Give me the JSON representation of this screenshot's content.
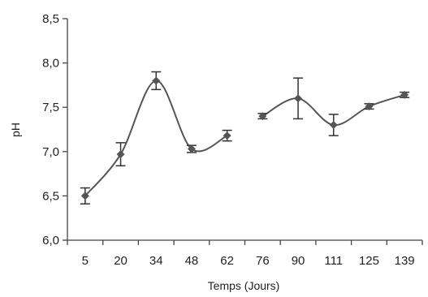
{
  "chart_data": {
    "type": "line",
    "xlabel": "Temps (Jours)",
    "ylabel": "pH",
    "ylim": [
      6.0,
      8.5
    ],
    "yticks": [
      "6,0",
      "6,5",
      "7,0",
      "7,5",
      "8,0",
      "8,5"
    ],
    "ytick_values": [
      6.0,
      6.5,
      7.0,
      7.5,
      8.0,
      8.5
    ],
    "categories": [
      "5",
      "20",
      "34",
      "48",
      "62",
      "76",
      "90",
      "111",
      "125",
      "139"
    ],
    "grid": false,
    "legend": "none",
    "line_color": "#555555",
    "marker_color": "#555555",
    "series": [
      {
        "segments": [
          {
            "points": [
              {
                "x": "5",
                "y": 6.5,
                "err": 0.09
              },
              {
                "x": "20",
                "y": 6.97,
                "err": 0.13
              },
              {
                "x": "34",
                "y": 7.8,
                "err": 0.1
              },
              {
                "x": "48",
                "y": 7.03,
                "err": 0.04
              },
              {
                "x": "62",
                "y": 7.18,
                "err": 0.06
              }
            ]
          },
          {
            "points": [
              {
                "x": "76",
                "y": 7.4,
                "err": 0.03
              },
              {
                "x": "90",
                "y": 7.6,
                "err": 0.23
              },
              {
                "x": "111",
                "y": 7.3,
                "err": 0.12
              },
              {
                "x": "125",
                "y": 7.51,
                "err": 0.03
              },
              {
                "x": "139",
                "y": 7.64,
                "err": 0.03
              }
            ]
          }
        ]
      }
    ]
  }
}
